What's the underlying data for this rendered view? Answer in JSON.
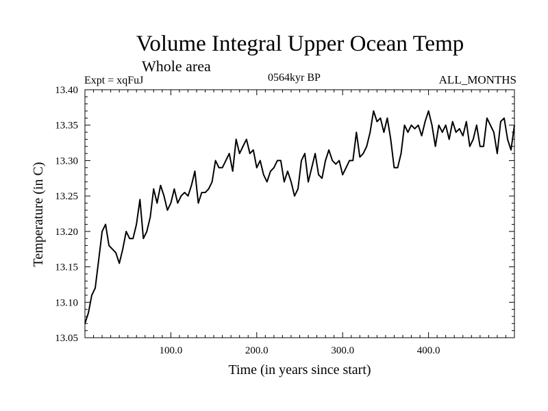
{
  "header": {
    "title": "Volume Integral Upper Ocean Temp",
    "subtitle": "Whole area",
    "experiment": "Expt = xqFuJ",
    "period": "0564kyr BP",
    "months": "ALL_MONTHS"
  },
  "chart_data": {
    "type": "line",
    "title": "Volume Integral Upper Ocean Temp",
    "subtitle": "Whole area",
    "xlabel": "Time (in years since start)",
    "ylabel": "Temperature (in C)",
    "xlim": [
      0,
      500
    ],
    "ylim": [
      13.05,
      13.4
    ],
    "x_ticks": [
      100,
      200,
      300,
      400
    ],
    "x_tick_labels": [
      "100.0",
      "200.0",
      "300.0",
      "400.0"
    ],
    "y_ticks": [
      13.05,
      13.1,
      13.15,
      13.2,
      13.25,
      13.3,
      13.35,
      13.4
    ],
    "y_tick_labels": [
      "13.05",
      "13.10",
      "13.15",
      "13.20",
      "13.25",
      "13.30",
      "13.35",
      "13.40"
    ],
    "grid": false,
    "series": [
      {
        "name": "Volume integral upper ocean temperature",
        "x": [
          0,
          4,
          8,
          12,
          16,
          20,
          24,
          28,
          32,
          36,
          40,
          44,
          48,
          52,
          56,
          60,
          64,
          68,
          72,
          76,
          80,
          84,
          88,
          92,
          96,
          100,
          104,
          108,
          112,
          116,
          120,
          124,
          128,
          132,
          136,
          140,
          144,
          148,
          152,
          156,
          160,
          164,
          168,
          172,
          176,
          180,
          184,
          188,
          192,
          196,
          200,
          204,
          208,
          212,
          216,
          220,
          224,
          228,
          232,
          236,
          240,
          244,
          248,
          252,
          256,
          260,
          264,
          268,
          272,
          276,
          280,
          284,
          288,
          292,
          296,
          300,
          304,
          308,
          312,
          316,
          320,
          324,
          328,
          332,
          336,
          340,
          344,
          348,
          352,
          356,
          360,
          364,
          368,
          372,
          376,
          380,
          384,
          388,
          392,
          396,
          400,
          404,
          408,
          412,
          416,
          420,
          424,
          428,
          432,
          436,
          440,
          444,
          448,
          452,
          456,
          460,
          464,
          468,
          472,
          476,
          480,
          484,
          488,
          492,
          496,
          500
        ],
        "values": [
          13.07,
          13.085,
          13.11,
          13.12,
          13.16,
          13.2,
          13.21,
          13.18,
          13.175,
          13.17,
          13.155,
          13.175,
          13.2,
          13.19,
          13.19,
          13.21,
          13.245,
          13.19,
          13.2,
          13.22,
          13.26,
          13.24,
          13.265,
          13.25,
          13.23,
          13.24,
          13.26,
          13.24,
          13.25,
          13.255,
          13.25,
          13.265,
          13.285,
          13.24,
          13.255,
          13.255,
          13.26,
          13.27,
          13.3,
          13.29,
          13.29,
          13.3,
          13.31,
          13.285,
          13.33,
          13.31,
          13.32,
          13.33,
          13.31,
          13.315,
          13.29,
          13.3,
          13.28,
          13.27,
          13.285,
          13.29,
          13.3,
          13.3,
          13.27,
          13.285,
          13.27,
          13.25,
          13.26,
          13.3,
          13.31,
          13.27,
          13.29,
          13.31,
          13.28,
          13.275,
          13.3,
          13.315,
          13.3,
          13.295,
          13.3,
          13.28,
          13.29,
          13.3,
          13.3,
          13.34,
          13.305,
          13.31,
          13.32,
          13.34,
          13.37,
          13.355,
          13.36,
          13.34,
          13.36,
          13.33,
          13.29,
          13.29,
          13.31,
          13.35,
          13.34,
          13.35,
          13.345,
          13.35,
          13.335,
          13.355,
          13.37,
          13.35,
          13.32,
          13.35,
          13.34,
          13.35,
          13.33,
          13.355,
          13.34,
          13.345,
          13.335,
          13.355,
          13.32,
          13.33,
          13.35,
          13.32,
          13.32,
          13.36,
          13.35,
          13.34,
          13.31,
          13.355,
          13.36,
          13.33,
          13.315,
          13.35
        ]
      }
    ]
  }
}
